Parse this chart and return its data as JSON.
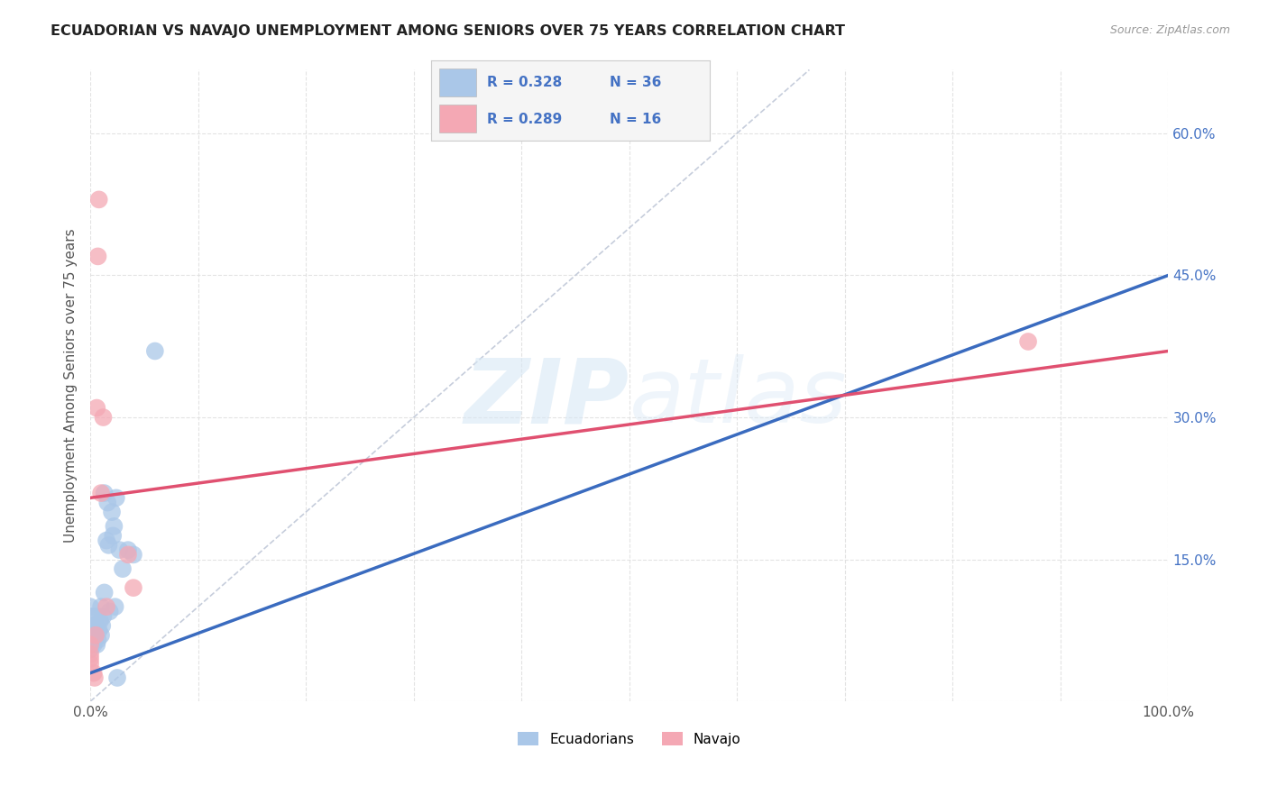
{
  "title": "ECUADORIAN VS NAVAJO UNEMPLOYMENT AMONG SENIORS OVER 75 YEARS CORRELATION CHART",
  "source": "Source: ZipAtlas.com",
  "ylabel": "Unemployment Among Seniors over 75 years",
  "xlim": [
    0,
    1.0
  ],
  "ylim": [
    0,
    0.667
  ],
  "xticks": [
    0.0,
    0.1,
    0.2,
    0.3,
    0.4,
    0.5,
    0.6,
    0.7,
    0.8,
    0.9,
    1.0
  ],
  "xticklabels": [
    "0.0%",
    "",
    "",
    "",
    "",
    "",
    "",
    "",
    "",
    "",
    "100.0%"
  ],
  "yticks": [
    0.0,
    0.15,
    0.3,
    0.45,
    0.6
  ],
  "yticklabels": [
    "",
    "15.0%",
    "30.0%",
    "45.0%",
    "60.0%"
  ],
  "ecuadorians_x": [
    0.0,
    0.0,
    0.0,
    0.0,
    0.0,
    0.003,
    0.003,
    0.004,
    0.005,
    0.005,
    0.005,
    0.006,
    0.007,
    0.008,
    0.009,
    0.01,
    0.01,
    0.011,
    0.012,
    0.013,
    0.013,
    0.015,
    0.016,
    0.017,
    0.018,
    0.02,
    0.021,
    0.022,
    0.023,
    0.024,
    0.025,
    0.027,
    0.03,
    0.035,
    0.04,
    0.06
  ],
  "ecuadorians_y": [
    0.055,
    0.07,
    0.08,
    0.09,
    0.1,
    0.06,
    0.075,
    0.065,
    0.07,
    0.08,
    0.09,
    0.06,
    0.065,
    0.075,
    0.085,
    0.07,
    0.1,
    0.08,
    0.09,
    0.115,
    0.22,
    0.17,
    0.21,
    0.165,
    0.095,
    0.2,
    0.175,
    0.185,
    0.1,
    0.215,
    0.025,
    0.16,
    0.14,
    0.16,
    0.155,
    0.37
  ],
  "navajo_x": [
    0.0,
    0.0,
    0.0,
    0.0,
    0.003,
    0.004,
    0.005,
    0.006,
    0.007,
    0.008,
    0.01,
    0.012,
    0.015,
    0.035,
    0.04,
    0.87
  ],
  "navajo_y": [
    0.04,
    0.045,
    0.05,
    0.06,
    0.03,
    0.025,
    0.07,
    0.31,
    0.47,
    0.53,
    0.22,
    0.3,
    0.1,
    0.155,
    0.12,
    0.38
  ],
  "r_ecuadorians": 0.328,
  "n_ecuadorians": 36,
  "r_navajo": 0.289,
  "n_navajo": 16,
  "ecuadorians_color": "#aac7e8",
  "navajo_color": "#f4a8b4",
  "trend_blue_intercept": 0.03,
  "trend_blue_slope": 0.42,
  "trend_pink_intercept": 0.215,
  "trend_pink_slope": 0.155,
  "diagonal_color": "#c0c8d8",
  "watermark_color": "#d8e8f5",
  "background_color": "#ffffff",
  "grid_color": "#e0e0e0"
}
